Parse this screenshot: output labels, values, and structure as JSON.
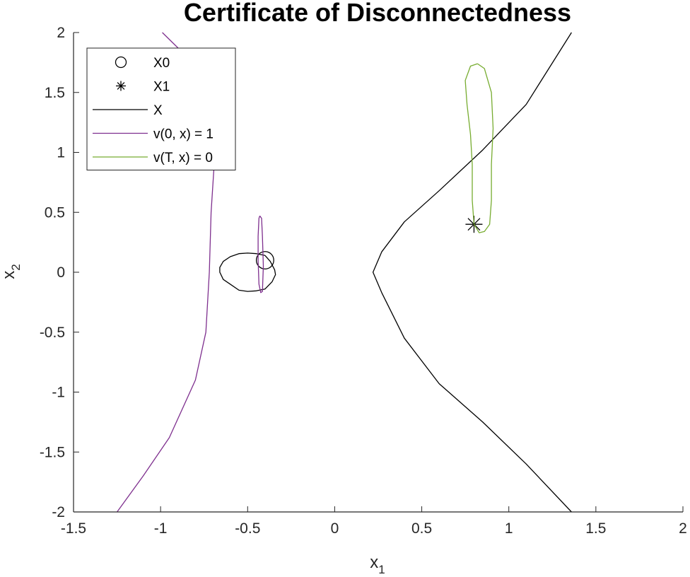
{
  "chart_data": {
    "type": "line",
    "title": "Certificate of Disconnectedness",
    "xlabel": {
      "base": "x",
      "sub": "1"
    },
    "ylabel": {
      "base": "x",
      "sub": "2"
    },
    "xlim": [
      -1.5,
      2
    ],
    "ylim": [
      -2,
      2
    ],
    "xticks": [
      -1.5,
      -1,
      -0.5,
      0,
      0.5,
      1,
      1.5,
      2
    ],
    "yticks": [
      -2,
      -1.5,
      -1,
      -0.5,
      0,
      0.5,
      1,
      1.5,
      2
    ],
    "xtick_labels": [
      "-1.5",
      "-1",
      "-0.5",
      "0",
      "0.5",
      "1",
      "1.5",
      "2"
    ],
    "ytick_labels": [
      "-2",
      "-1.5",
      "-1",
      "-0.5",
      "0",
      "0.5",
      "1",
      "1.5",
      "2"
    ],
    "grid": false,
    "legend_position": "top-left",
    "legend": [
      {
        "label": "X0",
        "kind": "marker-circle",
        "color": "#000000"
      },
      {
        "label": "X1",
        "kind": "marker-star",
        "color": "#000000"
      },
      {
        "label": "X",
        "kind": "line",
        "color": "#000000"
      },
      {
        "label": "v(0, x) = 1",
        "kind": "line",
        "color": "#7E2F8E"
      },
      {
        "label": "v(T, x) = 0",
        "kind": "line",
        "color": "#77AC30"
      }
    ],
    "series": [
      {
        "name": "X0",
        "kind": "circle",
        "color": "#000000",
        "center": [
          -0.4,
          0.1
        ],
        "radius": 0.05
      },
      {
        "name": "X1",
        "kind": "marker",
        "color": "#000000",
        "points": [
          [
            0.8,
            0.4
          ]
        ]
      },
      {
        "name": "X",
        "kind": "curves",
        "color": "#000000",
        "curves": [
          [
            [
              -0.4,
              0.14
            ],
            [
              -0.45,
              0.155
            ],
            [
              -0.5,
              0.16
            ],
            [
              -0.55,
              0.155
            ],
            [
              -0.6,
              0.13
            ],
            [
              -0.64,
              0.09
            ],
            [
              -0.66,
              0.04
            ],
            [
              -0.66,
              0.0
            ],
            [
              -0.64,
              -0.06
            ],
            [
              -0.6,
              -0.1
            ],
            [
              -0.55,
              -0.15
            ],
            [
              -0.5,
              -0.16
            ],
            [
              -0.45,
              -0.155
            ],
            [
              -0.4,
              -0.14
            ],
            [
              -0.36,
              -0.08
            ],
            [
              -0.34,
              -0.02
            ],
            [
              -0.345,
              0.02
            ],
            [
              -0.37,
              0.09
            ],
            [
              -0.4,
              0.14
            ]
          ],
          [
            [
              1.36,
              -2.0
            ],
            [
              1.1,
              -1.6
            ],
            [
              0.85,
              -1.25
            ],
            [
              0.6,
              -0.93
            ],
            [
              0.4,
              -0.55
            ],
            [
              0.27,
              -0.17
            ],
            [
              0.22,
              0.0
            ],
            [
              0.27,
              0.17
            ],
            [
              0.4,
              0.42
            ],
            [
              0.6,
              0.68
            ],
            [
              0.85,
              1.02
            ],
            [
              1.1,
              1.4
            ],
            [
              1.36,
              2.0
            ]
          ]
        ]
      },
      {
        "name": "v(0, x) = 1",
        "kind": "curves",
        "color": "#7E2F8E",
        "curves": [
          [
            [
              -1.25,
              -2.0
            ],
            [
              -1.1,
              -1.7
            ],
            [
              -0.95,
              -1.38
            ],
            [
              -0.8,
              -0.9
            ],
            [
              -0.74,
              -0.5
            ],
            [
              -0.72,
              0.0
            ],
            [
              -0.71,
              0.5
            ],
            [
              -0.69,
              0.95
            ],
            [
              -0.72,
              1.35
            ],
            [
              -0.85,
              1.8
            ],
            [
              -0.99,
              2.0
            ]
          ],
          [
            [
              -0.43,
              0.47
            ],
            [
              -0.42,
              0.45
            ],
            [
              -0.415,
              0.3
            ],
            [
              -0.41,
              0.05
            ],
            [
              -0.415,
              -0.16
            ],
            [
              -0.425,
              -0.17
            ],
            [
              -0.435,
              -0.1
            ],
            [
              -0.44,
              0.1
            ],
            [
              -0.44,
              0.3
            ],
            [
              -0.435,
              0.45
            ],
            [
              -0.43,
              0.47
            ]
          ]
        ]
      },
      {
        "name": "v(T, x) = 0",
        "kind": "curves",
        "color": "#77AC30",
        "curves": [
          [
            [
              0.82,
              1.74
            ],
            [
              0.86,
              1.7
            ],
            [
              0.9,
              1.5
            ],
            [
              0.91,
              1.2
            ],
            [
              0.9,
              0.9
            ],
            [
              0.9,
              0.6
            ],
            [
              0.89,
              0.4
            ],
            [
              0.86,
              0.34
            ],
            [
              0.83,
              0.33
            ],
            [
              0.8,
              0.4
            ],
            [
              0.79,
              0.6
            ],
            [
              0.79,
              0.9
            ],
            [
              0.78,
              1.15
            ],
            [
              0.76,
              1.4
            ],
            [
              0.75,
              1.6
            ],
            [
              0.78,
              1.72
            ],
            [
              0.82,
              1.74
            ]
          ]
        ]
      }
    ]
  }
}
